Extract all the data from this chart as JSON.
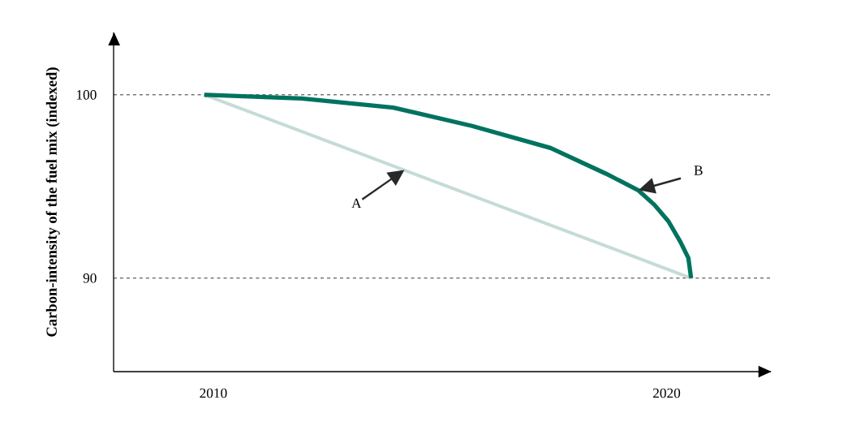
{
  "chart_data": {
    "type": "line",
    "ylabel": "Carbon-intensity of the fuel mix (indexed)",
    "x": [
      2009.8,
      2011.95,
      2013.97,
      2015.71,
      2017.44,
      2018.66,
      2019.37,
      2019.73,
      2020.04,
      2020.3,
      2020.48,
      2020.54
    ],
    "series": [
      {
        "color": "#c5dbd8",
        "x": [
          2009.8,
          2020.54
        ],
        "values": [
          100,
          90
        ]
      },
      {
        "color": "#00735f",
        "values": [
          100,
          99.8,
          99.3,
          98.3,
          97.1,
          95.7,
          94.8,
          94.0,
          93.1,
          92.0,
          91.1,
          90
        ]
      }
    ],
    "xlim": [
      2007.8,
      2022.3
    ],
    "ylim": [
      84.9,
      103.4
    ],
    "xticks": [
      2010,
      2020
    ],
    "yticks": [
      90,
      100
    ],
    "grid": "y",
    "annotations": [
      "A",
      "B"
    ]
  }
}
